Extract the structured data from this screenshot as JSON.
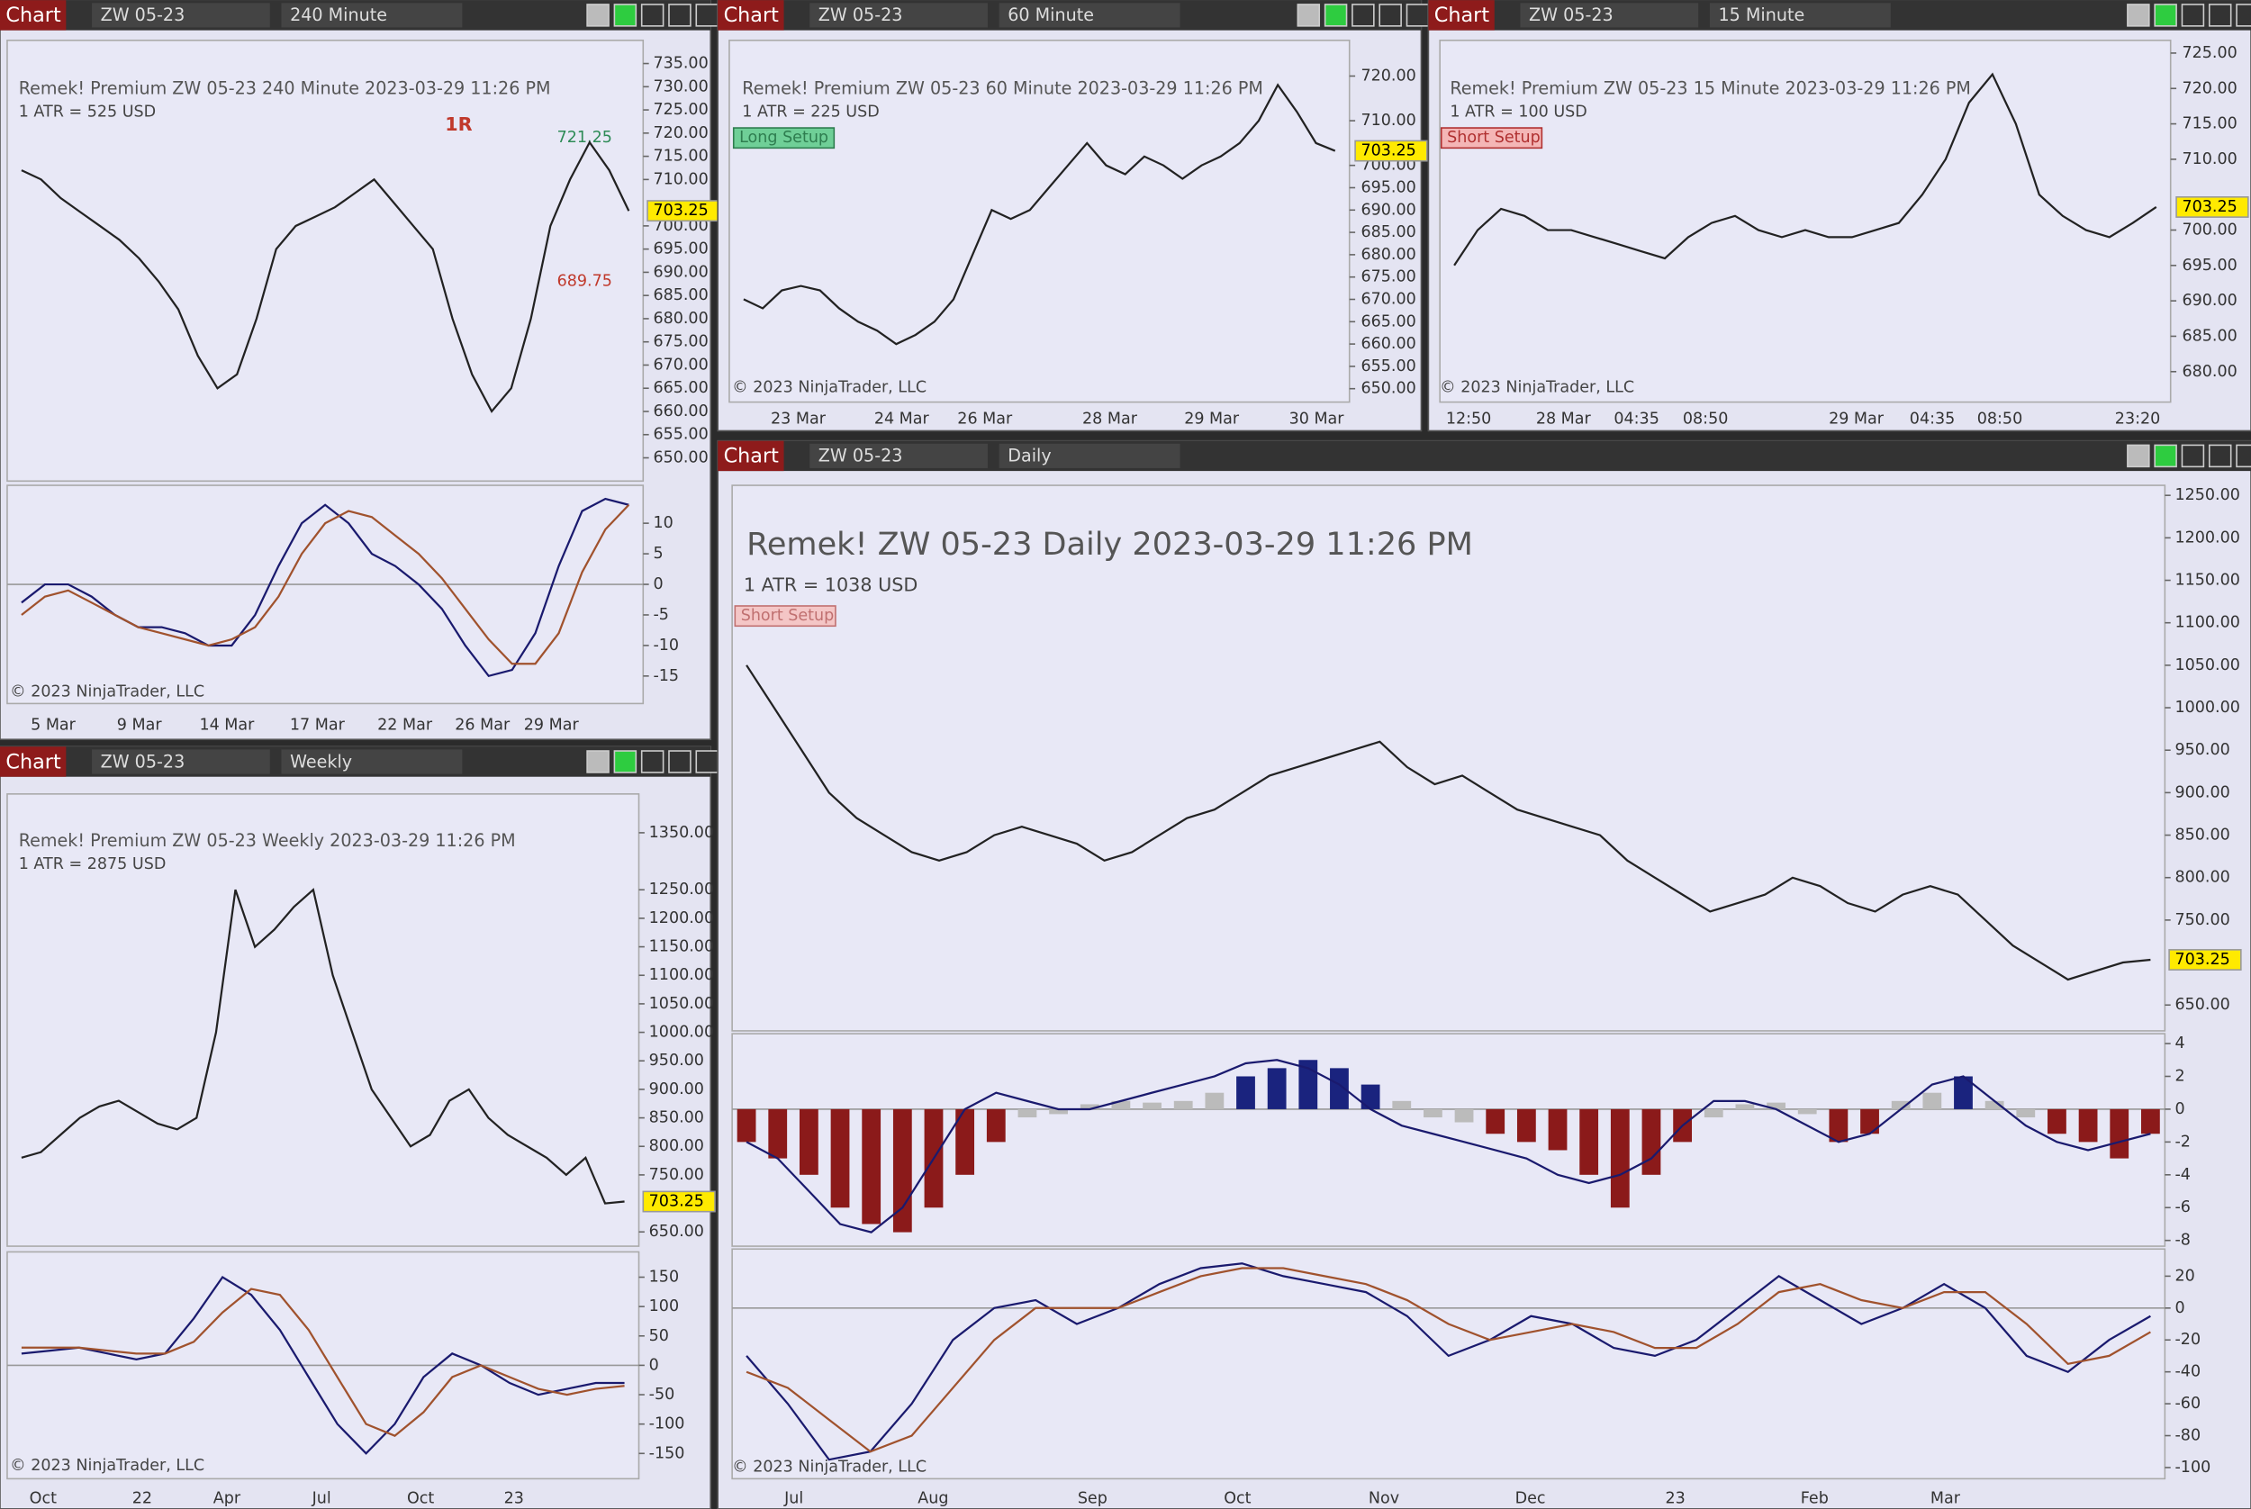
{
  "panels": [
    {
      "header": {
        "tab": "Chart",
        "instrument": "ZW 05-23",
        "interval": "240 Minute"
      },
      "title": "Remek!  Premium  ZW 05-23  240 Minute  2023-03-29 11:26 PM",
      "atr": "1 ATR = 525 USD",
      "annotations": [
        "1R",
        "721.25",
        "689.75"
      ],
      "copyright": "© 2023 NinjaTrader, LLC",
      "last_price": 703.25,
      "xlabels": [
        "5 Mar",
        "9 Mar",
        "14 Mar",
        "17 Mar",
        "22 Mar",
        "26 Mar",
        "29 Mar"
      ],
      "ylim": [
        645,
        740
      ],
      "yticks": [
        {
          "value": 650,
          "label": "650.00"
        },
        {
          "value": 655,
          "label": "655.00"
        },
        {
          "value": 660,
          "label": "660.00"
        },
        {
          "value": 665,
          "label": "665.00"
        },
        {
          "value": 670,
          "label": "670.00"
        },
        {
          "value": 675,
          "label": "675.00"
        },
        {
          "value": 680,
          "label": "680.00"
        },
        {
          "value": 685,
          "label": "685.00"
        },
        {
          "value": 690,
          "label": "690.00"
        },
        {
          "value": 695,
          "label": "695.00"
        },
        {
          "value": 700,
          "label": "700.00"
        },
        {
          "value": 710,
          "label": "710.00"
        },
        {
          "value": 715,
          "label": "715.00"
        },
        {
          "value": 720,
          "label": "720.00"
        },
        {
          "value": 725,
          "label": "725.00"
        },
        {
          "value": 730,
          "label": "730.00"
        },
        {
          "value": 735,
          "label": "735.00"
        }
      ],
      "price": {
        "color": "#222222",
        "values": [
          712,
          710,
          706,
          703,
          700,
          697,
          693,
          688,
          682,
          672,
          665,
          668,
          680,
          695,
          700,
          702,
          704,
          707,
          710,
          705,
          700,
          695,
          680,
          668,
          660,
          665,
          680,
          700,
          710,
          718,
          712,
          703.25
        ]
      },
      "osc": {
        "ylim": [
          -19.5,
          16.2
        ],
        "yticks": [
          -15,
          -10,
          -5,
          0,
          5,
          10
        ],
        "series": [
          {
            "color": "#1a1a6e",
            "values": [
              -3,
              0,
              0,
              -2,
              -5,
              -7,
              -7,
              -8,
              -10,
              -10,
              -5,
              3,
              10,
              13,
              10,
              5,
              3,
              0,
              -4,
              -10,
              -15,
              -14,
              -8,
              3,
              12,
              14,
              13
            ]
          },
          {
            "color": "#a0522d",
            "values": [
              -5,
              -2,
              -1,
              -3,
              -5,
              -7,
              -8,
              -9,
              -10,
              -9,
              -7,
              -2,
              5,
              10,
              12,
              11,
              8,
              5,
              1,
              -4,
              -9,
              -13,
              -13,
              -8,
              2,
              9,
              13
            ]
          }
        ]
      }
    },
    {
      "header": {
        "tab": "Chart",
        "instrument": "ZW 05-23",
        "interval": "60 Minute"
      },
      "title": "Remek!  Premium  ZW 05-23  60 Minute  2023-03-29 11:26 PM",
      "atr": "1 ATR = 225 USD",
      "setup": "Long Setup",
      "copyright": "© 2023 NinjaTrader, LLC",
      "last_price": 703.25,
      "xlabels": [
        "23 Mar",
        "24 Mar",
        "26 Mar",
        "28 Mar",
        "29 Mar",
        "30 Mar"
      ],
      "ylim": [
        647,
        728
      ],
      "yticks": [
        {
          "value": 650,
          "label": "650.00"
        },
        {
          "value": 655,
          "label": "655.00"
        },
        {
          "value": 660,
          "label": "660.00"
        },
        {
          "value": 665,
          "label": "665.00"
        },
        {
          "value": 670,
          "label": "670.00"
        },
        {
          "value": 675,
          "label": "675.00"
        },
        {
          "value": 680,
          "label": "680.00"
        },
        {
          "value": 685,
          "label": "685.00"
        },
        {
          "value": 690,
          "label": "690.00"
        },
        {
          "value": 695,
          "label": "695.00"
        },
        {
          "value": 700,
          "label": "700.00"
        },
        {
          "value": 710,
          "label": "710.00"
        },
        {
          "value": 720,
          "label": "720.00"
        }
      ],
      "price": {
        "color": "#222222",
        "values": [
          670,
          668,
          672,
          673,
          672,
          668,
          665,
          663,
          660,
          662,
          665,
          670,
          680,
          690,
          688,
          690,
          695,
          700,
          705,
          700,
          698,
          702,
          700,
          697,
          700,
          702,
          705,
          710,
          718,
          712,
          705,
          703.25
        ]
      }
    },
    {
      "header": {
        "tab": "Chart",
        "instrument": "ZW 05-23",
        "interval": "15 Minute"
      },
      "title": "Remek!  Premium  ZW 05-23  15 Minute  2023-03-29 11:26 PM",
      "atr": "1 ATR = 100 USD",
      "setup": "Short Setup",
      "copyright": "© 2023 NinjaTrader, LLC",
      "last_price": 703.25,
      "xlabels": [
        "12:50",
        "28 Mar",
        "04:35",
        "08:50",
        "29 Mar",
        "04:35",
        "08:50",
        "23:20"
      ],
      "ylim": [
        675.7,
        726.8
      ],
      "yticks": [
        {
          "value": 680,
          "label": "680.00"
        },
        {
          "value": 685,
          "label": "685.00"
        },
        {
          "value": 690,
          "label": "690.00"
        },
        {
          "value": 695,
          "label": "695.00"
        },
        {
          "value": 700,
          "label": "700.00"
        },
        {
          "value": 710,
          "label": "710.00"
        },
        {
          "value": 715,
          "label": "715.00"
        },
        {
          "value": 720,
          "label": "720.00"
        },
        {
          "value": 725,
          "label": "725.00"
        }
      ],
      "price": {
        "color": "#222222",
        "values": [
          695,
          700,
          703,
          702,
          700,
          700,
          699,
          698,
          697,
          696,
          699,
          701,
          702,
          700,
          699,
          700,
          699,
          699,
          700,
          701,
          705,
          710,
          718,
          722,
          715,
          705,
          702,
          700,
          699,
          701,
          703.25
        ]
      }
    },
    {
      "header": {
        "tab": "Chart",
        "instrument": "ZW 05-23",
        "interval": "Weekly"
      },
      "title": "Remek!  Premium  ZW 05-23  Weekly  2023-03-29 11:26 PM",
      "atr": "1 ATR = 2875 USD",
      "copyright": "© 2023 NinjaTrader, LLC",
      "last_price": 703.25,
      "xlabels": [
        "Oct",
        "22",
        "Apr",
        "Jul",
        "Oct",
        "23"
      ],
      "ylim": [
        625,
        1418
      ],
      "yticks": [
        {
          "value": 650,
          "label": "650.00"
        },
        {
          "value": 750,
          "label": "750.00"
        },
        {
          "value": 800,
          "label": "800.00"
        },
        {
          "value": 850,
          "label": "850.00"
        },
        {
          "value": 900,
          "label": "900.00"
        },
        {
          "value": 950,
          "label": "950.00"
        },
        {
          "value": 1000,
          "label": "1000.00"
        },
        {
          "value": 1050,
          "label": "1050.00"
        },
        {
          "value": 1100,
          "label": "1100.00"
        },
        {
          "value": 1150,
          "label": "1150.00"
        },
        {
          "value": 1200,
          "label": "1200.00"
        },
        {
          "value": 1250,
          "label": "1250.00"
        },
        {
          "value": 1350,
          "label": "1350.00"
        }
      ],
      "price": {
        "color": "#222222",
        "values": [
          780,
          790,
          820,
          850,
          870,
          880,
          860,
          840,
          830,
          850,
          1000,
          1250,
          1150,
          1180,
          1220,
          1250,
          1100,
          1000,
          900,
          850,
          800,
          820,
          880,
          900,
          850,
          820,
          800,
          780,
          750,
          780,
          700,
          703.25
        ]
      },
      "osc": {
        "ylim": [
          -193,
          193
        ],
        "yticks": [
          -150,
          -100,
          -50,
          0,
          50,
          100,
          150
        ],
        "series": [
          {
            "color": "#1a1a6e",
            "values": [
              20,
              25,
              30,
              20,
              10,
              20,
              80,
              150,
              120,
              60,
              -20,
              -100,
              -150,
              -100,
              -20,
              20,
              0,
              -30,
              -50,
              -40,
              -30,
              -30
            ]
          },
          {
            "color": "#a0522d",
            "values": [
              30,
              30,
              30,
              25,
              20,
              20,
              40,
              90,
              130,
              120,
              60,
              -20,
              -100,
              -120,
              -80,
              -20,
              0,
              -20,
              -40,
              -50,
              -40,
              -35
            ]
          }
        ]
      }
    },
    {
      "header": {
        "tab": "Chart",
        "instrument": "ZW 05-23",
        "interval": "Daily"
      },
      "title": "Remek!  ZW 05-23  Daily  2023-03-29 11:26 PM",
      "atr": "1 ATR = 1038 USD",
      "setup": "Short Setup",
      "copyright": "© 2023 NinjaTrader, LLC",
      "last_price": 703.25,
      "xlabels": [
        "Jul",
        "Aug",
        "Sep",
        "Oct",
        "Nov",
        "Dec",
        "23",
        "Feb",
        "Mar"
      ],
      "ylim": [
        619.6,
        1261.8
      ],
      "yticks": [
        {
          "value": 650,
          "label": "650.00"
        },
        {
          "value": 750,
          "label": "750.00"
        },
        {
          "value": 800,
          "label": "800.00"
        },
        {
          "value": 850,
          "label": "850.00"
        },
        {
          "value": 900,
          "label": "900.00"
        },
        {
          "value": 950,
          "label": "950.00"
        },
        {
          "value": 1000,
          "label": "1000.00"
        },
        {
          "value": 1050,
          "label": "1050.00"
        },
        {
          "value": 1100,
          "label": "1100.00"
        },
        {
          "value": 1150,
          "label": "1150.00"
        },
        {
          "value": 1200,
          "label": "1200.00"
        },
        {
          "value": 1250,
          "label": "1250.00"
        }
      ],
      "price": {
        "color": "#222222",
        "values": [
          1050,
          1000,
          950,
          900,
          870,
          850,
          830,
          820,
          830,
          850,
          860,
          850,
          840,
          820,
          830,
          850,
          870,
          880,
          900,
          920,
          930,
          940,
          950,
          960,
          930,
          910,
          920,
          900,
          880,
          870,
          860,
          850,
          820,
          800,
          780,
          760,
          770,
          780,
          800,
          790,
          770,
          760,
          780,
          790,
          780,
          750,
          720,
          700,
          680,
          690,
          700,
          703.25
        ]
      },
      "hist": {
        "ylim": [
          -8.35,
          4.6
        ],
        "yticks": [
          -8,
          -6,
          -4,
          -2,
          0,
          2,
          4
        ],
        "colors": {
          "up": "#1a237e",
          "down": "#8b1a1a",
          "neutral": "#bbbbbb"
        },
        "values": [
          -2,
          -3,
          -4,
          -6,
          -7,
          -7.5,
          -6,
          -4,
          -2,
          -0.5,
          -0.3,
          0.3,
          0.5,
          0.4,
          0.5,
          1,
          2,
          2.5,
          3,
          2.5,
          1.5,
          0.5,
          -0.5,
          -0.8,
          -1.5,
          -2,
          -2.5,
          -4,
          -6,
          -4,
          -2,
          -0.5,
          0.3,
          0.4,
          -0.3,
          -2,
          -1.5,
          0.5,
          1,
          2,
          0.5,
          -0.5,
          -1.5,
          -2,
          -3,
          -1.5
        ],
        "line": {
          "color": "#1a1a6e",
          "values": [
            -2,
            -3,
            -5,
            -7,
            -7.5,
            -6,
            -3,
            0,
            1,
            0.5,
            0,
            0,
            0.5,
            1,
            1.5,
            2,
            2.8,
            3,
            2.5,
            1.5,
            0,
            -1,
            -1.5,
            -2,
            -2.5,
            -3,
            -4,
            -4.5,
            -4,
            -3,
            -1,
            0.5,
            0.5,
            0,
            -1,
            -2,
            -1.5,
            0,
            1.5,
            2,
            0.5,
            -1,
            -2,
            -2.5,
            -2,
            -1.5
          ]
        }
      },
      "osc": {
        "ylim": [
          -107,
          37
        ],
        "yticks": [
          -100,
          -80,
          -60,
          -40,
          -20,
          0,
          20
        ],
        "series": [
          {
            "color": "#1a1a6e",
            "values": [
              -30,
              -60,
              -95,
              -90,
              -60,
              -20,
              0,
              5,
              -10,
              0,
              15,
              25,
              28,
              20,
              15,
              10,
              -5,
              -30,
              -20,
              -5,
              -10,
              -25,
              -30,
              -20,
              0,
              20,
              5,
              -10,
              0,
              15,
              0,
              -30,
              -40,
              -20,
              -5
            ]
          },
          {
            "color": "#a0522d",
            "values": [
              -40,
              -50,
              -70,
              -90,
              -80,
              -50,
              -20,
              0,
              0,
              0,
              10,
              20,
              25,
              25,
              20,
              15,
              5,
              -10,
              -20,
              -15,
              -10,
              -15,
              -25,
              -25,
              -10,
              10,
              15,
              5,
              0,
              10,
              10,
              -10,
              -35,
              -30,
              -15
            ]
          }
        ]
      }
    }
  ]
}
